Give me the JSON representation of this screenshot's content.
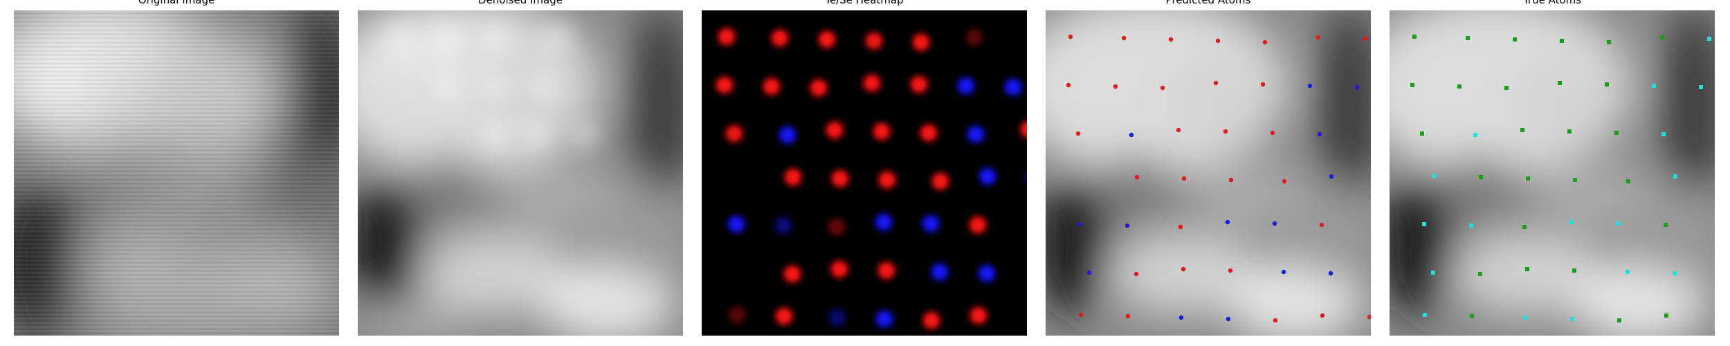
{
  "panels": [
    {
      "id": "original",
      "title": "Original Image"
    },
    {
      "id": "denoised",
      "title": "Denoised Image"
    },
    {
      "id": "heatmap",
      "title": "Te/Se Heatmap"
    },
    {
      "id": "predicted",
      "title": "Predicted Atoms"
    },
    {
      "id": "true",
      "title": "True Atoms"
    }
  ],
  "colors": {
    "te_red": "#e11b1b",
    "se_blue": "#1b1bd8",
    "true_green": "#1a9e1a",
    "true_cyan": "#1fdede",
    "background": "#ffffff"
  },
  "heatmap_spots": [
    {
      "type": "te",
      "col": 0,
      "row": 0,
      "intensity": 1.0
    },
    {
      "type": "te",
      "col": 1,
      "row": 0,
      "intensity": 1.0
    },
    {
      "type": "te",
      "col": 2,
      "row": 0,
      "intensity": 1.0
    },
    {
      "type": "te",
      "col": 3,
      "row": 0,
      "intensity": 0.95
    },
    {
      "type": "te",
      "col": 4,
      "row": 0,
      "intensity": 1.0
    },
    {
      "type": "te",
      "col": 5,
      "row": 0,
      "intensity": 0.35
    },
    {
      "type": "te",
      "col": 0,
      "row": 1,
      "intensity": 1.0
    },
    {
      "type": "te",
      "col": 1,
      "row": 1,
      "intensity": 1.0
    },
    {
      "type": "te",
      "col": 2,
      "row": 1,
      "intensity": 1.0
    },
    {
      "type": "te",
      "col": 3,
      "row": 1,
      "intensity": 1.0
    },
    {
      "type": "te",
      "col": 4,
      "row": 1,
      "intensity": 1.0
    },
    {
      "type": "se",
      "col": 5,
      "row": 1,
      "intensity": 1.0
    },
    {
      "type": "se",
      "col": 6,
      "row": 1,
      "intensity": 1.0
    },
    {
      "type": "te",
      "col": 0,
      "row": 2,
      "intensity": 0.95
    },
    {
      "type": "se",
      "col": 1,
      "row": 2,
      "intensity": 1.0
    },
    {
      "type": "te",
      "col": 2,
      "row": 2,
      "intensity": 1.0
    },
    {
      "type": "te",
      "col": 3,
      "row": 2,
      "intensity": 1.0
    },
    {
      "type": "te",
      "col": 4,
      "row": 2,
      "intensity": 1.0
    },
    {
      "type": "se",
      "col": 5,
      "row": 2,
      "intensity": 1.0
    },
    {
      "type": "te",
      "col": 6,
      "row": 2,
      "intensity": 1.0
    },
    {
      "type": "te",
      "col": 1,
      "row": 3,
      "intensity": 1.0
    },
    {
      "type": "te",
      "col": 2,
      "row": 3,
      "intensity": 1.0
    },
    {
      "type": "te",
      "col": 3,
      "row": 3,
      "intensity": 1.0
    },
    {
      "type": "te",
      "col": 4,
      "row": 3,
      "intensity": 1.0
    },
    {
      "type": "se",
      "col": 5,
      "row": 3,
      "intensity": 1.0
    },
    {
      "type": "se",
      "col": 6,
      "row": 3,
      "intensity": 0.85
    },
    {
      "type": "se",
      "col": 0,
      "row": 4,
      "intensity": 1.0
    },
    {
      "type": "se",
      "col": 1,
      "row": 4,
      "intensity": 0.5
    },
    {
      "type": "te",
      "col": 2,
      "row": 4,
      "intensity": 0.4
    },
    {
      "type": "se",
      "col": 3,
      "row": 4,
      "intensity": 1.0
    },
    {
      "type": "se",
      "col": 4,
      "row": 4,
      "intensity": 1.0
    },
    {
      "type": "te",
      "col": 5,
      "row": 4,
      "intensity": 1.0
    },
    {
      "type": "te",
      "col": 1,
      "row": 5,
      "intensity": 1.0
    },
    {
      "type": "te",
      "col": 2,
      "row": 5,
      "intensity": 1.0
    },
    {
      "type": "te",
      "col": 3,
      "row": 5,
      "intensity": 1.0
    },
    {
      "type": "se",
      "col": 4,
      "row": 5,
      "intensity": 1.0
    },
    {
      "type": "se",
      "col": 5,
      "row": 5,
      "intensity": 1.0
    },
    {
      "type": "te",
      "col": 0,
      "row": 6,
      "intensity": 0.35
    },
    {
      "type": "te",
      "col": 1,
      "row": 6,
      "intensity": 1.0
    },
    {
      "type": "se",
      "col": 2,
      "row": 6,
      "intensity": 0.45
    },
    {
      "type": "se",
      "col": 3,
      "row": 6,
      "intensity": 1.0
    },
    {
      "type": "te",
      "col": 4,
      "row": 6,
      "intensity": 1.0
    },
    {
      "type": "te",
      "col": 5,
      "row": 6,
      "intensity": 1.0
    }
  ],
  "predicted_atoms": [
    {
      "type": "te",
      "col": 0,
      "row": 0
    },
    {
      "type": "te",
      "col": 1,
      "row": 0
    },
    {
      "type": "te",
      "col": 2,
      "row": 0
    },
    {
      "type": "te",
      "col": 3,
      "row": 0
    },
    {
      "type": "te",
      "col": 4,
      "row": 0
    },
    {
      "type": "te",
      "col": 5,
      "row": 0
    },
    {
      "type": "te",
      "col": 6,
      "row": 0
    },
    {
      "type": "te",
      "col": 0,
      "row": 1
    },
    {
      "type": "te",
      "col": 1,
      "row": 1
    },
    {
      "type": "te",
      "col": 2,
      "row": 1
    },
    {
      "type": "te",
      "col": 3,
      "row": 1
    },
    {
      "type": "te",
      "col": 4,
      "row": 1
    },
    {
      "type": "se",
      "col": 5,
      "row": 1
    },
    {
      "type": "se",
      "col": 6,
      "row": 1
    },
    {
      "type": "te",
      "col": 0,
      "row": 2
    },
    {
      "type": "se",
      "col": 1,
      "row": 2
    },
    {
      "type": "te",
      "col": 2,
      "row": 2
    },
    {
      "type": "te",
      "col": 3,
      "row": 2
    },
    {
      "type": "te",
      "col": 4,
      "row": 2
    },
    {
      "type": "se",
      "col": 5,
      "row": 2
    },
    {
      "type": "te",
      "col": 6,
      "row": 2
    },
    {
      "type": "te",
      "col": 1,
      "row": 3
    },
    {
      "type": "te",
      "col": 2,
      "row": 3
    },
    {
      "type": "te",
      "col": 3,
      "row": 3
    },
    {
      "type": "te",
      "col": 4,
      "row": 3
    },
    {
      "type": "se",
      "col": 5,
      "row": 3
    },
    {
      "type": "se",
      "col": 6,
      "row": 3
    },
    {
      "type": "se",
      "col": 0,
      "row": 4
    },
    {
      "type": "se",
      "col": 1,
      "row": 4
    },
    {
      "type": "te",
      "col": 2,
      "row": 4
    },
    {
      "type": "se",
      "col": 3,
      "row": 4
    },
    {
      "type": "se",
      "col": 4,
      "row": 4
    },
    {
      "type": "te",
      "col": 5,
      "row": 4
    },
    {
      "type": "se",
      "col": 0,
      "row": 5
    },
    {
      "type": "te",
      "col": 1,
      "row": 5
    },
    {
      "type": "te",
      "col": 2,
      "row": 5
    },
    {
      "type": "te",
      "col": 3,
      "row": 5
    },
    {
      "type": "se",
      "col": 4,
      "row": 5
    },
    {
      "type": "se",
      "col": 5,
      "row": 5
    },
    {
      "type": "te",
      "col": 0,
      "row": 6
    },
    {
      "type": "te",
      "col": 1,
      "row": 6
    },
    {
      "type": "se",
      "col": 2,
      "row": 6
    },
    {
      "type": "se",
      "col": 3,
      "row": 6
    },
    {
      "type": "te",
      "col": 4,
      "row": 6
    },
    {
      "type": "te",
      "col": 5,
      "row": 6
    },
    {
      "type": "te",
      "col": 6,
      "row": 6
    }
  ],
  "true_atoms": [
    {
      "type": "green",
      "col": 0,
      "row": 0
    },
    {
      "type": "green",
      "col": 1,
      "row": 0
    },
    {
      "type": "green",
      "col": 2,
      "row": 0
    },
    {
      "type": "green",
      "col": 3,
      "row": 0
    },
    {
      "type": "green",
      "col": 4,
      "row": 0
    },
    {
      "type": "green",
      "col": 5,
      "row": 0
    },
    {
      "type": "cyan",
      "col": 6,
      "row": 0
    },
    {
      "type": "green",
      "col": 0,
      "row": 1
    },
    {
      "type": "green",
      "col": 1,
      "row": 1
    },
    {
      "type": "green",
      "col": 2,
      "row": 1
    },
    {
      "type": "green",
      "col": 3,
      "row": 1
    },
    {
      "type": "green",
      "col": 4,
      "row": 1
    },
    {
      "type": "cyan",
      "col": 5,
      "row": 1
    },
    {
      "type": "cyan",
      "col": 6,
      "row": 1
    },
    {
      "type": "green",
      "col": 0,
      "row": 2
    },
    {
      "type": "cyan",
      "col": 1,
      "row": 2
    },
    {
      "type": "green",
      "col": 2,
      "row": 2
    },
    {
      "type": "green",
      "col": 3,
      "row": 2
    },
    {
      "type": "green",
      "col": 4,
      "row": 2
    },
    {
      "type": "cyan",
      "col": 5,
      "row": 2
    },
    {
      "type": "green",
      "col": 6,
      "row": 2
    },
    {
      "type": "cyan",
      "col": 0,
      "row": 3
    },
    {
      "type": "green",
      "col": 1,
      "row": 3
    },
    {
      "type": "green",
      "col": 2,
      "row": 3
    },
    {
      "type": "green",
      "col": 3,
      "row": 3
    },
    {
      "type": "green",
      "col": 4,
      "row": 3
    },
    {
      "type": "cyan",
      "col": 5,
      "row": 3
    },
    {
      "type": "cyan",
      "col": 6,
      "row": 3
    },
    {
      "type": "cyan",
      "col": 0,
      "row": 4
    },
    {
      "type": "cyan",
      "col": 1,
      "row": 4
    },
    {
      "type": "green",
      "col": 2,
      "row": 4
    },
    {
      "type": "cyan",
      "col": 3,
      "row": 4
    },
    {
      "type": "cyan",
      "col": 4,
      "row": 4
    },
    {
      "type": "green",
      "col": 5,
      "row": 4
    },
    {
      "type": "cyan",
      "col": 0,
      "row": 5
    },
    {
      "type": "green",
      "col": 1,
      "row": 5
    },
    {
      "type": "green",
      "col": 2,
      "row": 5
    },
    {
      "type": "green",
      "col": 3,
      "row": 5
    },
    {
      "type": "cyan",
      "col": 4,
      "row": 5
    },
    {
      "type": "cyan",
      "col": 5,
      "row": 5
    },
    {
      "type": "cyan",
      "col": 0,
      "row": 6
    },
    {
      "type": "green",
      "col": 1,
      "row": 6
    },
    {
      "type": "cyan",
      "col": 2,
      "row": 6
    },
    {
      "type": "cyan",
      "col": 3,
      "row": 6
    },
    {
      "type": "green",
      "col": 4,
      "row": 6
    },
    {
      "type": "green",
      "col": 5,
      "row": 6
    }
  ]
}
